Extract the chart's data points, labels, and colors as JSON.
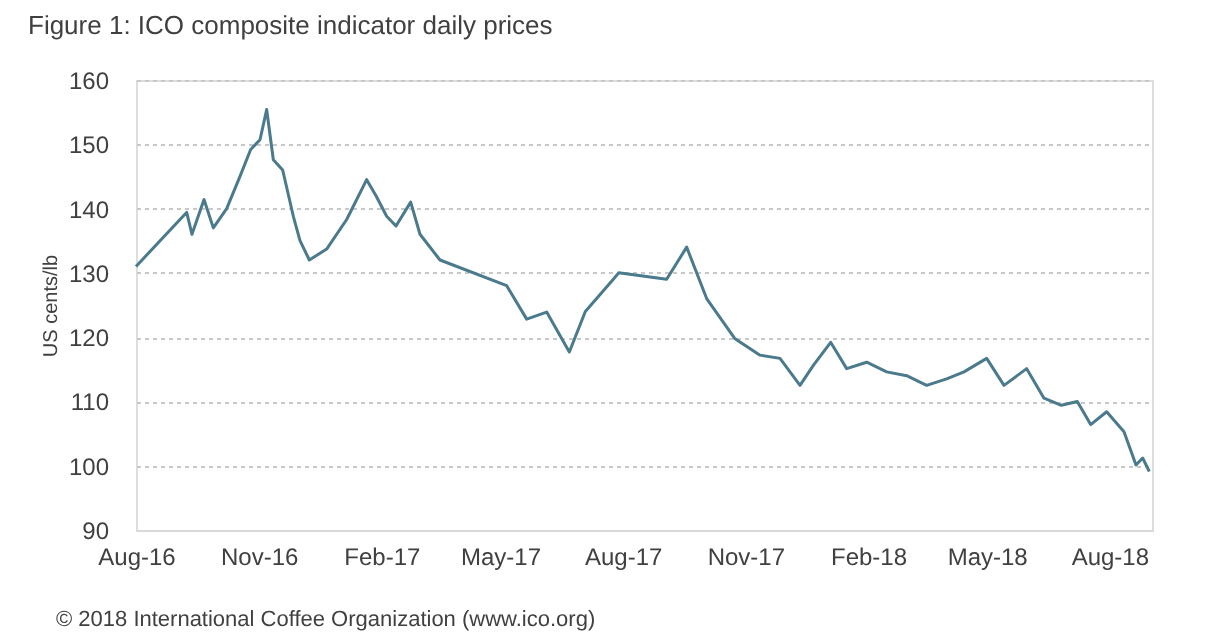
{
  "chart_data": {
    "type": "line",
    "title": "Figure 1: ICO composite indicator daily prices",
    "ylabel": "US cents/lb",
    "annotations": [
      "© 2018 International Coffee Organization (www.ico.org)"
    ],
    "x": [
      "2016-08-01",
      "2016-09-03",
      "2016-09-08",
      "2016-09-12",
      "2016-09-21",
      "2016-09-28",
      "2016-10-08",
      "2016-10-18",
      "2016-10-26",
      "2016-11-02",
      "2016-11-07",
      "2016-11-12",
      "2016-11-19",
      "2016-11-27",
      "2016-12-02",
      "2016-12-09",
      "2016-12-22",
      "2017-01-06",
      "2017-01-21",
      "2017-01-28",
      "2017-02-05",
      "2017-02-12",
      "2017-02-23",
      "2017-03-02",
      "2017-03-17",
      "2017-05-06",
      "2017-05-21",
      "2017-06-05",
      "2017-06-22",
      "2017-07-04",
      "2017-07-25",
      "2017-07-29",
      "2017-09-03",
      "2017-09-18",
      "2017-10-03",
      "2017-10-24",
      "2017-11-12",
      "2017-11-27",
      "2017-12-12",
      "2017-12-22",
      "2018-01-04",
      "2018-01-16",
      "2018-01-31",
      "2018-02-15",
      "2018-03-02",
      "2018-03-17",
      "2018-04-01",
      "2018-04-14",
      "2018-05-01",
      "2018-05-14",
      "2018-05-31",
      "2018-06-13",
      "2018-06-26",
      "2018-07-08",
      "2018-07-18",
      "2018-07-30",
      "2018-08-12",
      "2018-08-21",
      "2018-08-26",
      "2018-08-31"
    ],
    "series": [
      {
        "color": "#4a7a8c",
        "values": [
          131,
          138.3,
          139.4,
          136,
          141.4,
          137,
          140,
          145,
          149.2,
          150.7,
          155.4,
          147.6,
          146,
          138.8,
          135,
          132,
          133.7,
          138.3,
          144.5,
          142,
          138.8,
          137.3,
          141,
          136,
          132,
          128,
          122.8,
          123.9,
          117.7,
          124,
          129,
          130,
          129,
          134,
          126,
          119.8,
          117.2,
          116.7,
          112.5,
          115.6,
          119.2,
          115.1,
          116.1,
          114.6,
          114,
          112.5,
          113.5,
          114.6,
          116.7,
          112.5,
          115.1,
          110.5,
          109.4,
          110,
          106.4,
          108.4,
          105.3,
          100.1,
          101.2,
          99.1
        ]
      }
    ],
    "xlim": [
      "2016-08-01",
      "2018-09-02"
    ],
    "xticks": [
      {
        "value": "2016-08-01",
        "label": "Aug-16"
      },
      {
        "value": "2016-11-01",
        "label": "Nov-16"
      },
      {
        "value": "2017-02-01",
        "label": "Feb-17"
      },
      {
        "value": "2017-05-01",
        "label": "May-17"
      },
      {
        "value": "2017-08-01",
        "label": "Aug-17"
      },
      {
        "value": "2017-11-01",
        "label": "Nov-17"
      },
      {
        "value": "2018-02-01",
        "label": "Feb-18"
      },
      {
        "value": "2018-05-01",
        "label": "May-18"
      },
      {
        "value": "2018-08-01",
        "label": "Aug-18"
      }
    ],
    "ylim": [
      90,
      160
    ],
    "yticks": [
      90,
      100,
      110,
      120,
      130,
      140,
      150,
      160
    ],
    "grid": "y",
    "marker": "none",
    "line_style": "solid"
  }
}
